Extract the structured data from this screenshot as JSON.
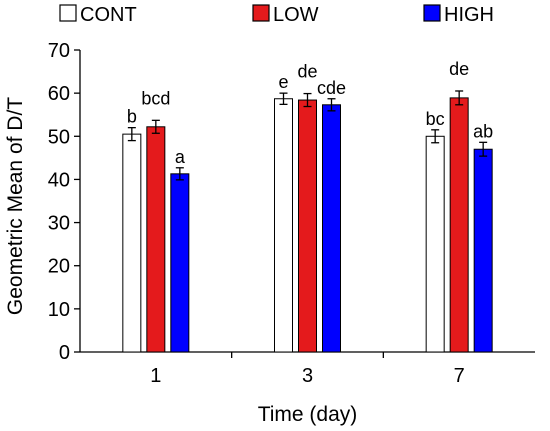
{
  "chart_data": {
    "type": "bar",
    "xlabel": "Time (day)",
    "ylabel": "Geometric Mean of D/T",
    "ylim": [
      0,
      70
    ],
    "yticks": [
      0,
      10,
      20,
      30,
      40,
      50,
      60,
      70
    ],
    "grid": false,
    "legend_position": "top",
    "categories": [
      "1",
      "3",
      "7"
    ],
    "series": [
      {
        "name": "CONT",
        "fill": "#ffffff",
        "stroke": "#000000",
        "values": [
          50.5,
          58.7,
          50.0
        ],
        "errors": [
          1.5,
          1.3,
          1.5
        ],
        "letters": [
          "b",
          "e",
          "bc"
        ]
      },
      {
        "name": "LOW",
        "fill": "#e41a1c",
        "stroke": "#000000",
        "values": [
          52.2,
          58.4,
          58.9
        ],
        "errors": [
          1.5,
          1.5,
          1.6
        ],
        "letters": [
          "bcd",
          "de",
          "de"
        ]
      },
      {
        "name": "HIGH",
        "fill": "#0000ff",
        "stroke": "#000000",
        "values": [
          41.3,
          57.3,
          47.0
        ],
        "errors": [
          1.4,
          1.4,
          1.6
        ],
        "letters": [
          "a",
          "cde",
          "ab"
        ]
      }
    ]
  }
}
